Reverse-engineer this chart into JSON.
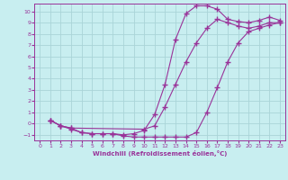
{
  "xlabel": "Windchill (Refroidissement éolien,°C)",
  "bg_color": "#c8eef0",
  "grid_color": "#aad4d8",
  "line_color": "#993399",
  "xlim": [
    -0.5,
    23.5
  ],
  "ylim": [
    -1.5,
    10.7
  ],
  "xticks": [
    0,
    1,
    2,
    3,
    4,
    5,
    6,
    7,
    8,
    9,
    10,
    11,
    12,
    13,
    14,
    15,
    16,
    17,
    18,
    19,
    20,
    21,
    22,
    23
  ],
  "yticks": [
    -1,
    0,
    1,
    2,
    3,
    4,
    5,
    6,
    7,
    8,
    9,
    10
  ],
  "line1_x": [
    1,
    2,
    3,
    4,
    5,
    6,
    7,
    8,
    9,
    10,
    11,
    12,
    13,
    14,
    15,
    16,
    17,
    18,
    19,
    20,
    21,
    22,
    23
  ],
  "line1_y": [
    0.3,
    -0.2,
    -0.5,
    -0.8,
    -0.9,
    -0.9,
    -0.9,
    -1.0,
    -0.9,
    -0.6,
    0.8,
    3.5,
    7.5,
    9.8,
    10.5,
    10.5,
    10.2,
    9.3,
    9.1,
    9.0,
    9.2,
    9.5,
    9.2
  ],
  "line2_x": [
    1,
    2,
    3,
    10,
    11,
    12,
    13,
    14,
    15,
    16,
    17,
    18,
    19,
    20,
    21,
    22,
    23
  ],
  "line2_y": [
    0.3,
    -0.2,
    -0.4,
    -0.5,
    -0.2,
    1.5,
    3.5,
    5.5,
    7.2,
    8.5,
    9.3,
    9.0,
    8.7,
    8.5,
    8.7,
    9.0,
    9.0
  ],
  "line3_x": [
    1,
    2,
    3,
    4,
    5,
    6,
    7,
    8,
    9,
    10,
    11,
    12,
    13,
    14,
    15,
    16,
    17,
    18,
    19,
    20,
    21,
    22,
    23
  ],
  "line3_y": [
    0.3,
    -0.2,
    -0.4,
    -0.8,
    -0.9,
    -0.9,
    -0.9,
    -1.1,
    -1.2,
    -1.2,
    -1.2,
    -1.2,
    -1.2,
    -1.2,
    -0.8,
    1.0,
    3.2,
    5.5,
    7.2,
    8.2,
    8.5,
    8.8,
    9.0
  ]
}
